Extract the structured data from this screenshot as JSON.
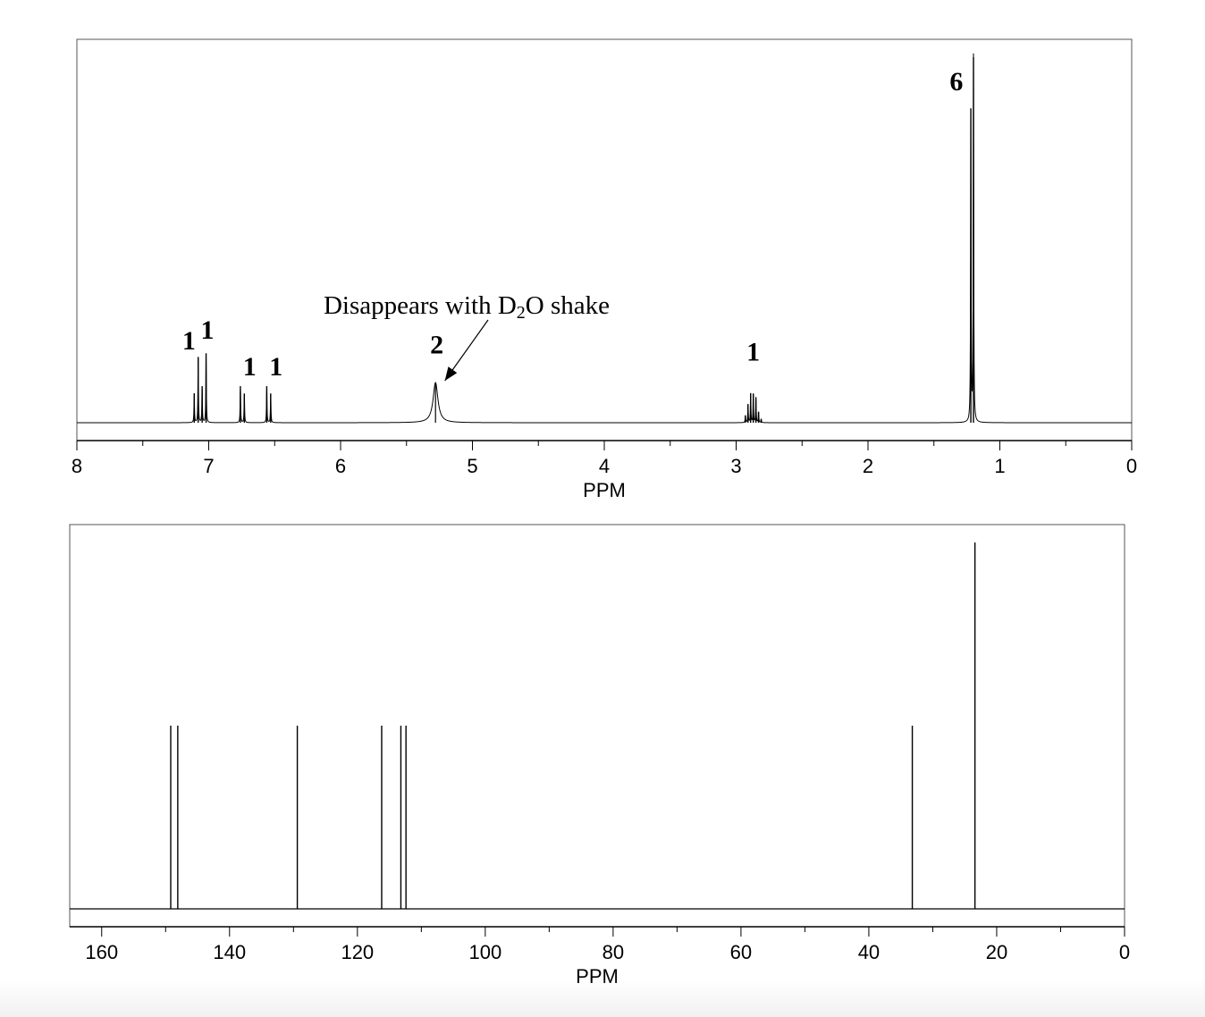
{
  "chart_data": [
    {
      "type": "line",
      "title": "",
      "xlabel": "PPM",
      "ylabel": "",
      "xlim": [
        8,
        0
      ],
      "x_reversed": true,
      "grid": false,
      "x_ticks": [
        "8",
        "7",
        "6",
        "5",
        "4",
        "3",
        "2",
        "1",
        "0"
      ],
      "x_tick_values": [
        8,
        7,
        6,
        5,
        4,
        3,
        2,
        1,
        0
      ],
      "peaks": [
        {
          "shift": 7.07,
          "lines": [
            7.11,
            7.08,
            7.05,
            7.02
          ],
          "heights": [
            0.08,
            0.18,
            0.1,
            0.19
          ]
        },
        {
          "shift": 6.74,
          "lines": [
            6.76,
            6.73
          ],
          "heights": [
            0.1,
            0.08
          ]
        },
        {
          "shift": 6.54,
          "lines": [
            6.56,
            6.53
          ],
          "heights": [
            0.1,
            0.08
          ]
        },
        {
          "shift": 5.28,
          "lines": [
            5.28
          ],
          "heights": [
            0.11
          ],
          "broad": true
        },
        {
          "shift": 2.87,
          "lines": [
            2.93,
            2.91,
            2.89,
            2.87,
            2.85,
            2.83,
            2.81
          ],
          "heights": [
            0.02,
            0.05,
            0.08,
            0.08,
            0.07,
            0.03,
            0.01
          ]
        },
        {
          "shift": 1.21,
          "lines": [
            1.22,
            1.2
          ],
          "heights": [
            0.86,
            1.0
          ]
        }
      ],
      "integrations": [
        {
          "label": "1",
          "shift": 7.15,
          "h": 0.2
        },
        {
          "label": "1",
          "shift": 7.01,
          "h": 0.23
        },
        {
          "label": "1",
          "shift": 6.69,
          "h": 0.13
        },
        {
          "label": "1",
          "shift": 6.49,
          "h": 0.13
        },
        {
          "label": "2",
          "shift": 5.27,
          "h": 0.19
        },
        {
          "label": "1",
          "shift": 2.87,
          "h": 0.17
        },
        {
          "label": "6",
          "shift": 1.33,
          "h": 0.91
        }
      ],
      "annotation": {
        "text_before": "Disappears with D",
        "subscript": "2",
        "text_after": "O shake",
        "arrow_to_shift": 5.27
      }
    },
    {
      "type": "bar",
      "title": "",
      "xlabel": "PPM",
      "ylabel": "",
      "xlim": [
        165,
        0
      ],
      "x_reversed": true,
      "grid": false,
      "x_ticks": [
        "160",
        "140",
        "120",
        "100",
        "80",
        "60",
        "40",
        "20",
        "0"
      ],
      "x_tick_values": [
        160,
        140,
        120,
        100,
        80,
        60,
        40,
        20,
        0
      ],
      "x": [
        149.2,
        148.1,
        129.4,
        116.2,
        113.2,
        112.4,
        33.2,
        23.4
      ],
      "values": [
        0.5,
        0.5,
        0.5,
        0.5,
        0.5,
        0.5,
        0.5,
        1.0
      ]
    }
  ]
}
